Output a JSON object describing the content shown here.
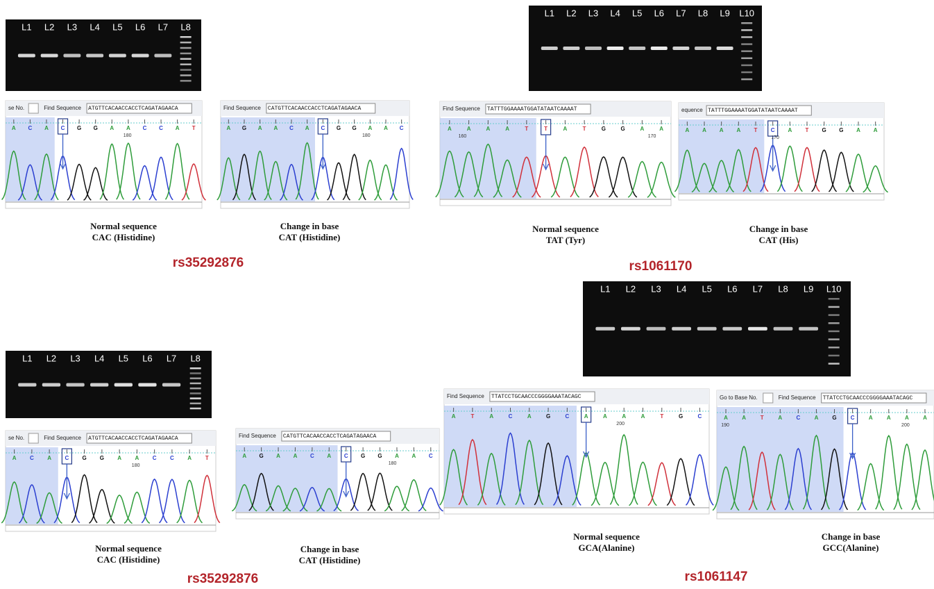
{
  "panels": [
    {
      "gel": {
        "lanes": [
          "L1",
          "L2",
          "L3",
          "L4",
          "L5",
          "L6",
          "L7",
          "L8"
        ]
      },
      "chromatograms": [
        {
          "goto_label": "se No.",
          "find_label": "Find Sequence",
          "sequence": "ATGTTCACAACCACCTCAGATAGAACA",
          "bases": [
            "A",
            "C",
            "A",
            "C",
            "G",
            "G",
            "A",
            "A",
            "C",
            "C",
            "A",
            "T"
          ],
          "positions": [
            180
          ],
          "caption": [
            "Normal sequence",
            "CAC (Histidine)"
          ]
        },
        {
          "find_label": "Find Sequence",
          "sequence": "CATGTTCACAACCACCTCAGATAGAACA",
          "bases": [
            "A",
            "G",
            "A",
            "A",
            "C",
            "A",
            "C",
            "G",
            "G",
            "A",
            "A",
            "C"
          ],
          "positions": [
            180
          ],
          "caption": [
            "Change in base",
            "CAT (Histidine)"
          ]
        }
      ],
      "rsid": "rs35292876"
    },
    {
      "gel": {
        "lanes": [
          "L1",
          "L2",
          "L3",
          "L4",
          "L5",
          "L6",
          "L7",
          "L8",
          "L9",
          "L10"
        ]
      },
      "chromatograms": [
        {
          "find_label": "Find Sequence",
          "sequence": "TATTTGGAAAATGGATATAATCAAAAT",
          "bases": [
            "A",
            "A",
            "A",
            "A",
            "T",
            "T",
            "A",
            "T",
            "G",
            "G",
            "A",
            "A"
          ],
          "positions": [
            160,
            170
          ],
          "caption": [
            "Normal sequence",
            "TAT (Tyr)"
          ]
        },
        {
          "find_label": "equence",
          "sequence": "TATTTGGAAAATGGATATAATCAAAAT",
          "bases": [
            "A",
            "A",
            "A",
            "A",
            "T",
            "C",
            "A",
            "T",
            "G",
            "G",
            "A",
            "A"
          ],
          "positions": [
            170
          ],
          "caption": [
            "Change in base",
            "CAT (His)"
          ]
        }
      ],
      "rsid": "rs1061170"
    },
    {
      "gel": {
        "lanes": [
          "L1",
          "L2",
          "L3",
          "L4",
          "L5",
          "L6",
          "L7",
          "L8"
        ]
      },
      "chromatograms": [
        {
          "goto_label": "se No.",
          "find_label": "Find Sequence",
          "sequence": "ATGTTCACAACCACCTCAGATAGAACA",
          "bases": [
            "A",
            "C",
            "A",
            "C",
            "G",
            "G",
            "A",
            "A",
            "C",
            "C",
            "A",
            "T"
          ],
          "positions": [
            180
          ],
          "caption": [
            "Normal sequence",
            "CAC (Histidine)"
          ]
        },
        {
          "find_label": "Find Sequence",
          "sequence": "CATGTTCACAACCACCTCAGATAGAACA",
          "bases": [
            "A",
            "G",
            "A",
            "A",
            "C",
            "A",
            "C",
            "G",
            "G",
            "A",
            "A",
            "C"
          ],
          "positions": [
            180
          ],
          "caption": [
            "Change in base",
            "CAT (Histidine)"
          ]
        }
      ],
      "rsid": "rs35292876"
    },
    {
      "gel": {
        "lanes": [
          "L1",
          "L2",
          "L3",
          "L4",
          "L5",
          "L6",
          "L7",
          "L8",
          "L9",
          "L10"
        ]
      },
      "chromatograms": [
        {
          "find_label": "Find Sequence",
          "sequence": "TTATCCTGCAACCCGGGGAAATACAGC",
          "bases": [
            "A",
            "T",
            "A",
            "C",
            "A",
            "G",
            "C",
            "A",
            "A",
            "A",
            "A",
            "T",
            "G",
            "C"
          ],
          "positions": [
            200
          ],
          "caption": [
            "Normal sequence",
            "GCA(Alanine)"
          ]
        },
        {
          "goto_label": "Go to Base No.",
          "find_label": "Find Sequence",
          "sequence": "TTATCCTGCAACCCGGGGAAATACAGC",
          "bases": [
            "A",
            "A",
            "T",
            "A",
            "C",
            "A",
            "G",
            "C",
            "A",
            "A",
            "A",
            "A"
          ],
          "positions": [
            190,
            200
          ],
          "caption": [
            "Change in base",
            "GCC(Alanine)"
          ]
        }
      ],
      "rsid": "rs1061147"
    }
  ]
}
